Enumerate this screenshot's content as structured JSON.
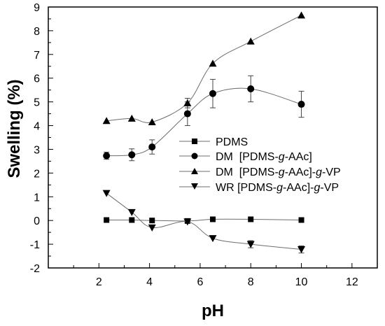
{
  "chart_data": {
    "type": "line",
    "xlabel": "pH",
    "ylabel": "Swelling (%)",
    "xlim": [
      0,
      13
    ],
    "ylim": [
      -2,
      9
    ],
    "xticks": [
      2,
      4,
      6,
      8,
      10,
      12
    ],
    "yticks": [
      -2,
      -1,
      0,
      1,
      2,
      3,
      4,
      5,
      6,
      7,
      8,
      9
    ],
    "x": [
      2.3,
      3.3,
      4.1,
      5.5,
      6.5,
      8,
      10
    ],
    "legend_position": "center-right",
    "series": [
      {
        "name": "PDMS",
        "marker": "square",
        "values": [
          0.02,
          0.02,
          0.0,
          -0.02,
          0.05,
          0.05,
          0.02
        ],
        "errors": [
          0,
          0,
          0,
          0,
          0,
          0,
          0
        ]
      },
      {
        "name": "DM  [PDMS-g-AAc]",
        "marker": "circle",
        "values": [
          2.73,
          2.77,
          3.1,
          4.5,
          5.35,
          5.55,
          4.9
        ],
        "errors": [
          0.15,
          0.25,
          0.3,
          0.5,
          0.6,
          0.55,
          0.55
        ]
      },
      {
        "name": "DM  [PDMS-g-AAc]-g-VP",
        "marker": "triangle-up",
        "values": [
          4.2,
          4.3,
          4.15,
          4.95,
          6.62,
          7.55,
          8.65
        ],
        "errors": [
          0.05,
          0.05,
          0.05,
          0.2,
          0.05,
          0.05,
          0.05
        ]
      },
      {
        "name": "WR [PDMS-g-AAc]-g-VP",
        "marker": "triangle-down",
        "values": [
          1.15,
          0.35,
          -0.3,
          -0.05,
          -0.75,
          -1.0,
          -1.22
        ],
        "errors": [
          0.05,
          0.05,
          0.05,
          0.05,
          0.05,
          0.15,
          0.15
        ]
      }
    ]
  },
  "legend": {
    "entries": [
      {
        "prefix": "PDMS",
        "g1": "",
        "mid": "",
        "g2": "",
        "suffix": ""
      },
      {
        "prefix": "DM  [PDMS-",
        "g1": "g",
        "mid": "-AAc]",
        "g2": "",
        "suffix": ""
      },
      {
        "prefix": "DM  [PDMS-",
        "g1": "g",
        "mid": "-AAc]-",
        "g2": "g",
        "suffix": "-VP"
      },
      {
        "prefix": "WR [PDMS-",
        "g1": "g",
        "mid": "-AAc]-",
        "g2": "g",
        "suffix": "-VP"
      }
    ]
  }
}
